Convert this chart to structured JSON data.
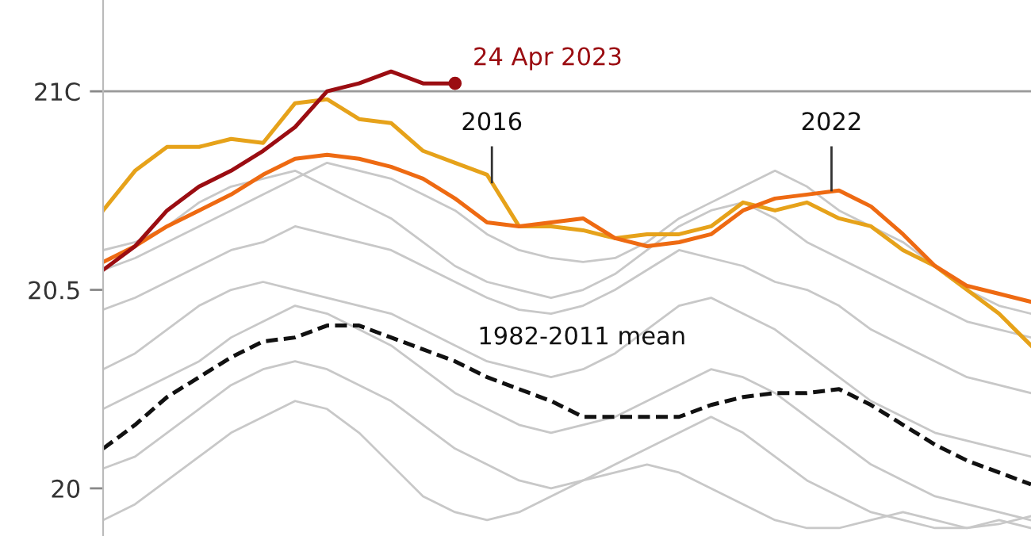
{
  "chart_data": {
    "type": "line",
    "categories": [
      null,
      null,
      null,
      null,
      null,
      null,
      null,
      null,
      null,
      null,
      null,
      null,
      null,
      null,
      null,
      null,
      null,
      null,
      null,
      null,
      null,
      null,
      null,
      null,
      null,
      null,
      null,
      null,
      null,
      null
    ],
    "ylim": [
      19.88,
      21.23
    ],
    "yticks": [
      {
        "value": 20,
        "label": "20"
      },
      {
        "value": 20.5,
        "label": "20.5"
      },
      {
        "value": 21,
        "label": "21C"
      }
    ],
    "tick_labels": "y",
    "grid": false,
    "legend": false,
    "ref_lines": [
      {
        "axis": "y",
        "value": 21,
        "color": "#999999"
      }
    ],
    "annotations": [
      "2016",
      "2022",
      "1982-2011 mean"
    ],
    "series": [
      {
        "color": "#c8c8c8",
        "values": [
          20.6,
          20.62,
          20.66,
          20.72,
          20.76,
          20.78,
          20.8,
          20.76,
          20.72,
          20.68,
          20.62,
          20.56,
          20.52,
          20.5,
          20.48,
          20.5,
          20.54,
          20.6,
          20.66,
          20.7,
          20.72,
          20.68,
          20.62,
          20.58,
          20.54,
          20.5,
          20.46,
          20.42,
          20.4,
          20.38
        ]
      },
      {
        "color": "#c8c8c8",
        "values": [
          20.55,
          20.58,
          20.62,
          20.66,
          20.7,
          20.74,
          20.78,
          20.82,
          20.8,
          20.78,
          20.74,
          20.7,
          20.64,
          20.6,
          20.58,
          20.57,
          20.58,
          20.62,
          20.68,
          20.72,
          20.76,
          20.8,
          20.76,
          20.7,
          20.66,
          20.62,
          20.56,
          20.5,
          20.46,
          20.44
        ]
      },
      {
        "color": "#c8c8c8",
        "values": [
          20.45,
          20.48,
          20.52,
          20.56,
          20.6,
          20.62,
          20.66,
          20.64,
          20.62,
          20.6,
          20.56,
          20.52,
          20.48,
          20.45,
          20.44,
          20.46,
          20.5,
          20.55,
          20.6,
          20.58,
          20.56,
          20.52,
          20.5,
          20.46,
          20.4,
          20.36,
          20.32,
          20.28,
          20.26,
          20.24
        ]
      },
      {
        "color": "#c8c8c8",
        "values": [
          20.3,
          20.34,
          20.4,
          20.46,
          20.5,
          20.52,
          20.5,
          20.48,
          20.46,
          20.44,
          20.4,
          20.36,
          20.32,
          20.3,
          20.28,
          20.3,
          20.34,
          20.4,
          20.46,
          20.48,
          20.44,
          20.4,
          20.34,
          20.28,
          20.22,
          20.18,
          20.14,
          20.12,
          20.1,
          20.08
        ]
      },
      {
        "color": "#c8c8c8",
        "values": [
          20.2,
          20.24,
          20.28,
          20.32,
          20.38,
          20.42,
          20.46,
          20.44,
          20.4,
          20.36,
          20.3,
          20.24,
          20.2,
          20.16,
          20.14,
          20.16,
          20.18,
          20.22,
          20.26,
          20.3,
          20.28,
          20.24,
          20.18,
          20.12,
          20.06,
          20.02,
          19.98,
          19.96,
          19.94,
          19.92
        ]
      },
      {
        "color": "#c8c8c8",
        "values": [
          20.05,
          20.08,
          20.14,
          20.2,
          20.26,
          20.3,
          20.32,
          20.3,
          20.26,
          20.22,
          20.16,
          20.1,
          20.06,
          20.02,
          20.0,
          20.02,
          20.06,
          20.1,
          20.14,
          20.18,
          20.14,
          20.08,
          20.02,
          19.98,
          19.94,
          19.92,
          19.9,
          19.9,
          19.92,
          19.9
        ]
      },
      {
        "color": "#c8c8c8",
        "values": [
          19.92,
          19.96,
          20.02,
          20.08,
          20.14,
          20.18,
          20.22,
          20.2,
          20.14,
          20.06,
          19.98,
          19.94,
          19.92,
          19.94,
          19.98,
          20.02,
          20.04,
          20.06,
          20.04,
          20.0,
          19.96,
          19.92,
          19.9,
          19.9,
          19.92,
          19.94,
          19.92,
          19.9,
          19.91,
          19.93
        ]
      },
      {
        "color": "#111111",
        "line_style": "dashed",
        "values": [
          20.1,
          20.16,
          20.23,
          20.28,
          20.33,
          20.37,
          20.38,
          20.41,
          20.41,
          20.38,
          20.35,
          20.32,
          20.28,
          20.25,
          20.22,
          20.18,
          20.18,
          20.18,
          20.18,
          20.21,
          20.23,
          20.24,
          20.24,
          20.25,
          20.21,
          20.16,
          20.11,
          20.07,
          20.04,
          20.01
        ]
      },
      {
        "color": "#e6a21a",
        "values": [
          20.7,
          20.8,
          20.86,
          20.86,
          20.88,
          20.87,
          20.97,
          20.98,
          20.93,
          20.92,
          20.85,
          20.82,
          20.79,
          20.66,
          20.66,
          20.65,
          20.63,
          20.64,
          20.64,
          20.66,
          20.72,
          20.7,
          20.72,
          20.68,
          20.66,
          20.6,
          20.56,
          20.5,
          20.44,
          20.36
        ]
      },
      {
        "color": "#ee6a12",
        "values": [
          20.57,
          20.61,
          20.66,
          20.7,
          20.74,
          20.79,
          20.83,
          20.84,
          20.83,
          20.81,
          20.78,
          20.73,
          20.67,
          20.66,
          20.67,
          20.68,
          20.63,
          20.61,
          20.62,
          20.64,
          20.7,
          20.73,
          20.74,
          20.75,
          20.71,
          20.64,
          20.56,
          20.51,
          20.49,
          20.47
        ]
      },
      {
        "name": "24 Apr 2023",
        "color": "#9b0d12",
        "values": [
          20.55,
          20.61,
          20.7,
          20.76,
          20.8,
          20.85,
          20.91,
          21.0,
          21.02,
          21.05,
          21.02,
          21.02,
          null,
          null,
          null,
          null,
          null,
          null,
          null,
          null,
          null,
          null,
          null,
          null,
          null,
          null,
          null,
          null,
          null,
          null
        ]
      }
    ]
  }
}
